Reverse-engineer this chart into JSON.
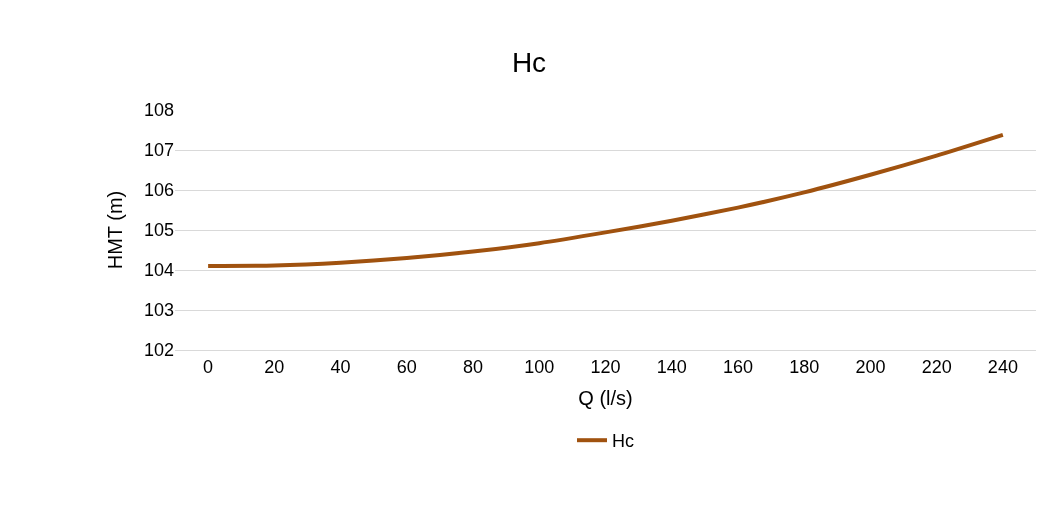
{
  "chart_data": {
    "type": "line",
    "title": "Hc",
    "xlabel": "Q (l/s)",
    "ylabel": "HMT (m)",
    "categories": [
      "0",
      "20",
      "40",
      "60",
      "80",
      "100",
      "120",
      "140",
      "160",
      "180",
      "200",
      "220",
      "240"
    ],
    "series": [
      {
        "name": "Hc",
        "color": "#a0520f",
        "values": [
          104.1,
          104.11,
          104.18,
          104.3,
          104.46,
          104.67,
          104.94,
          105.23,
          105.56,
          105.94,
          106.38,
          106.86,
          107.38
        ]
      }
    ],
    "ylim": [
      102,
      108
    ],
    "yticks": [
      102,
      103,
      104,
      105,
      106,
      107,
      108
    ],
    "grid": "y",
    "legend": "bottom",
    "marker": "none",
    "line_style": "solid"
  }
}
